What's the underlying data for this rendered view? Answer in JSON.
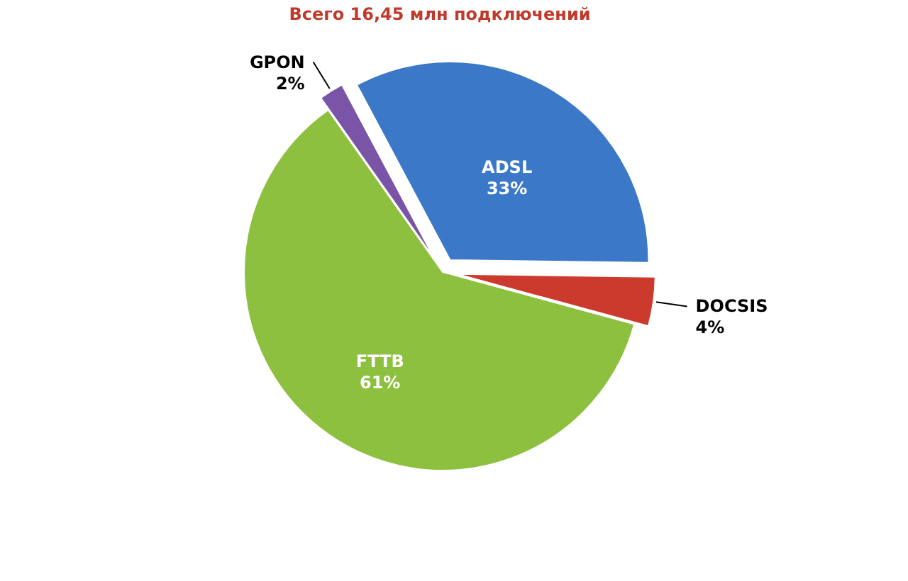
{
  "chart_data": {
    "type": "pie",
    "title": "Всего 16,45 млн подключений",
    "categories": [
      "ADSL",
      "DOCSIS",
      "FTTB",
      "GPON"
    ],
    "values": [
      33,
      4,
      61,
      2
    ],
    "colors": [
      "#3b78c8",
      "#cc3a2e",
      "#8dc03f",
      "#7a54a6"
    ],
    "value_labels": [
      "33%",
      "4%",
      "61%",
      "2%"
    ]
  }
}
